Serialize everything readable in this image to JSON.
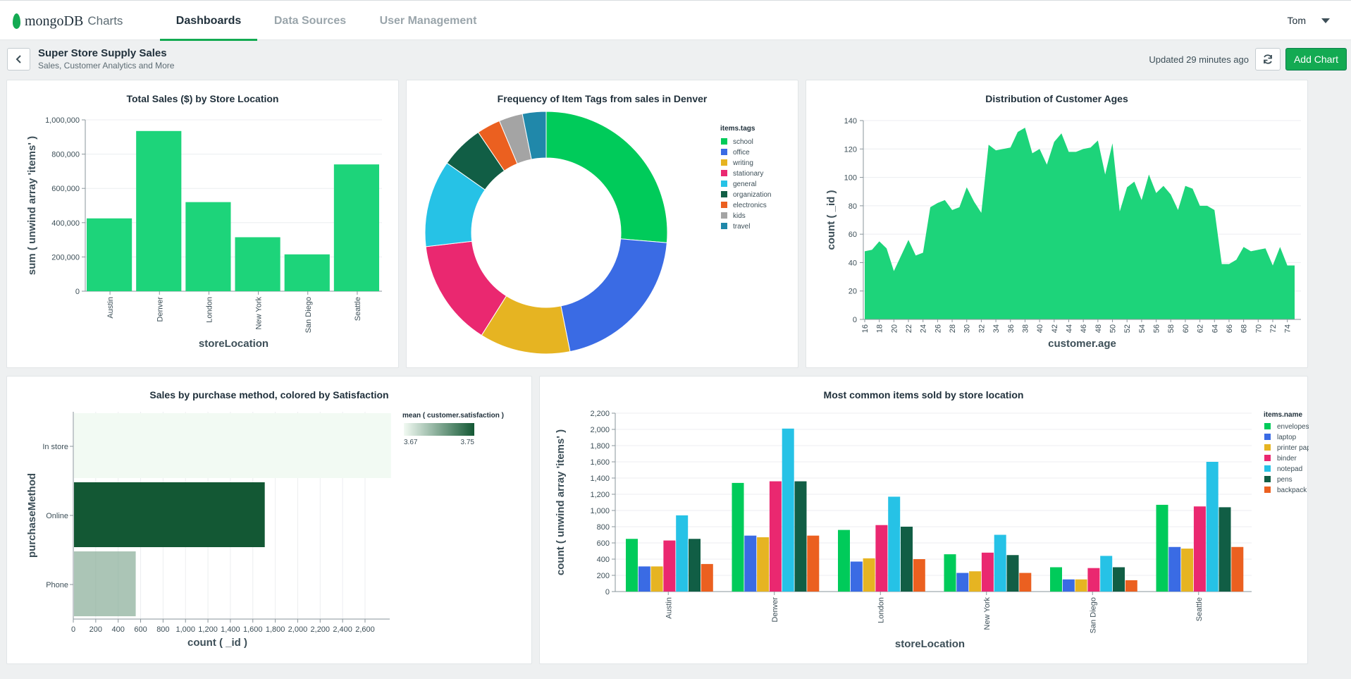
{
  "app": {
    "logo_text": "mongoDB",
    "product": "Charts"
  },
  "nav": {
    "tabs": [
      {
        "label": "Dashboards"
      },
      {
        "label": "Data Sources"
      },
      {
        "label": "User Management"
      }
    ],
    "user": "Tom"
  },
  "dashboard": {
    "title": "Super Store Supply Sales",
    "subtitle": "Sales, Customer Analytics and More",
    "updated": "Updated 29 minutes ago",
    "add_chart_label": "Add Chart"
  },
  "colors": {
    "accent": "#13aa52",
    "bar_green": "#1dd47a"
  },
  "chart_data": [
    {
      "id": "sales",
      "type": "bar",
      "title": "Total Sales ($) by Store Location",
      "xlabel": "storeLocation",
      "ylabel": "sum ( unwind array 'items' )",
      "categories": [
        "Austin",
        "Denver",
        "London",
        "New York",
        "San Diego",
        "Seattle"
      ],
      "values": [
        425000,
        935000,
        520000,
        315000,
        215000,
        740000
      ],
      "ylim": [
        0,
        1000000
      ],
      "yticks": [
        "0",
        "200,000",
        "400,000",
        "600,000",
        "800,000",
        "1,000,000"
      ]
    },
    {
      "id": "tags",
      "type": "pie",
      "title": "Frequency of Item Tags from sales in Denver",
      "legend_title": "items.tags",
      "labels": [
        "school",
        "office",
        "writing",
        "stationary",
        "general",
        "organization",
        "electronics",
        "kids",
        "travel"
      ],
      "values": [
        25,
        19.5,
        11.5,
        13.5,
        11,
        5.5,
        3,
        3,
        3
      ],
      "colors": [
        "#00cb5a",
        "#3a6be4",
        "#e6b422",
        "#ea2870",
        "#26c2e6",
        "#115e45",
        "#eb6020",
        "#a4a4a4",
        "#2088aa"
      ]
    },
    {
      "id": "ages",
      "type": "area",
      "title": "Distribution of Customer Ages",
      "xlabel": "customer.age",
      "ylabel": "count ( _id )",
      "x": [
        16,
        17,
        18,
        19,
        20,
        21,
        22,
        23,
        24,
        25,
        26,
        27,
        28,
        29,
        30,
        31,
        32,
        33,
        34,
        35,
        36,
        37,
        38,
        39,
        40,
        41,
        42,
        43,
        44,
        45,
        46,
        47,
        48,
        49,
        50,
        51,
        52,
        53,
        54,
        55,
        56,
        57,
        58,
        59,
        60,
        61,
        62,
        63,
        64,
        65,
        66,
        67,
        68,
        69,
        70,
        71,
        72,
        73,
        74,
        75
      ],
      "y": [
        48,
        49,
        55,
        50,
        34,
        45,
        56,
        45,
        47,
        79,
        82,
        84,
        77,
        79,
        93,
        83,
        75,
        123,
        119,
        120,
        121,
        132,
        135,
        117,
        120,
        109,
        125,
        131,
        118,
        118,
        120,
        121,
        126,
        102,
        124,
        76,
        93,
        97,
        84,
        102,
        89,
        94,
        88,
        77,
        94,
        92,
        80,
        80,
        77,
        39,
        39,
        42,
        51,
        48,
        49,
        50,
        38,
        51,
        38,
        38
      ],
      "ylim": [
        0,
        140
      ],
      "yticks": [
        0,
        20,
        40,
        60,
        80,
        100,
        120,
        140
      ],
      "xticks": [
        16,
        18,
        20,
        22,
        24,
        26,
        28,
        30,
        32,
        34,
        36,
        38,
        40,
        42,
        44,
        46,
        48,
        50,
        52,
        54,
        56,
        58,
        60,
        62,
        64,
        66,
        68,
        70,
        72,
        74
      ]
    },
    {
      "id": "purchase",
      "type": "bar",
      "orientation": "horizontal",
      "title": "Sales by purchase method, colored by Satisfaction",
      "xlabel": "count ( _id )",
      "ylabel": "purchaseMethod",
      "categories": [
        "In store",
        "Online",
        "Phone"
      ],
      "values": [
        2825,
        1700,
        550
      ],
      "satisfaction": [
        3.67,
        3.75,
        3.71
      ],
      "xlim": [
        0,
        2820
      ],
      "xticks": [
        "0",
        "200",
        "400",
        "600",
        "800",
        "1,000",
        "1,200",
        "1,400",
        "1,600",
        "1,800",
        "2,000",
        "2,200",
        "2,400",
        "2,600"
      ],
      "legend_title": "mean ( customer.satisfaction )",
      "legend_min": "3.67",
      "legend_max": "3.75"
    },
    {
      "id": "items",
      "type": "bar",
      "title": "Most common items sold by store location",
      "xlabel": "storeLocation",
      "ylabel": "count ( unwind array 'items' )",
      "legend_title": "items.name",
      "categories": [
        "Austin",
        "Denver",
        "London",
        "New York",
        "San Diego",
        "Seattle"
      ],
      "series": [
        {
          "name": "envelopes",
          "color": "#00cb5a",
          "values": [
            650,
            1340,
            760,
            460,
            300,
            1070
          ]
        },
        {
          "name": "laptop",
          "color": "#3a6be4",
          "values": [
            310,
            690,
            370,
            230,
            150,
            550
          ]
        },
        {
          "name": "printer paper",
          "color": "#e6b422",
          "values": [
            310,
            670,
            410,
            250,
            150,
            530
          ]
        },
        {
          "name": "binder",
          "color": "#ea2870",
          "values": [
            630,
            1360,
            820,
            480,
            290,
            1050
          ]
        },
        {
          "name": "notepad",
          "color": "#26c2e6",
          "values": [
            940,
            2010,
            1170,
            700,
            440,
            1600
          ]
        },
        {
          "name": "pens",
          "color": "#115e45",
          "values": [
            650,
            1360,
            800,
            450,
            300,
            1040
          ]
        },
        {
          "name": "backpack",
          "color": "#eb6020",
          "values": [
            340,
            690,
            400,
            230,
            140,
            550
          ]
        }
      ],
      "ylim": [
        0,
        2200
      ],
      "yticks": [
        "0",
        "200",
        "400",
        "600",
        "800",
        "1,000",
        "1,200",
        "1,400",
        "1,600",
        "1,800",
        "2,000",
        "2,200"
      ]
    }
  ]
}
